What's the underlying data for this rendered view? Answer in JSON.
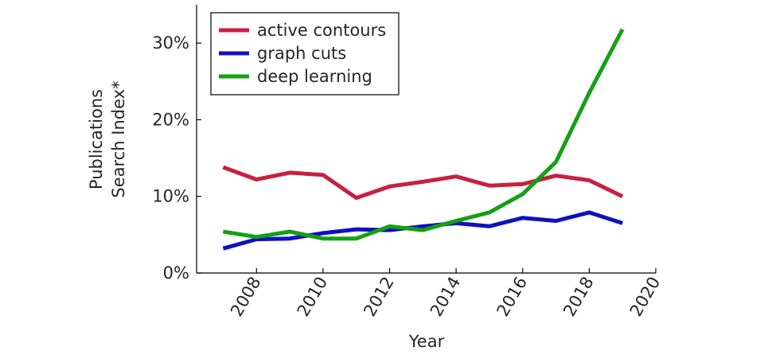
{
  "chart_data": {
    "type": "line",
    "title": "",
    "xlabel": "Year",
    "ylabel": [
      "Publications",
      "Search Index*"
    ],
    "xlim": [
      2006.2,
      2020
    ],
    "ylim": [
      0,
      35
    ],
    "xticks": [
      2008,
      2010,
      2012,
      2014,
      2016,
      2018,
      2020
    ],
    "xtick_labels": [
      "2008",
      "2010",
      "2012",
      "2014",
      "2016",
      "2018",
      "2020"
    ],
    "yticks": [
      0,
      10,
      20,
      30
    ],
    "ytick_labels": [
      "0%",
      "10%",
      "20%",
      "30%"
    ],
    "grid": false,
    "legend_position": "top-left",
    "x": [
      2007,
      2008,
      2009,
      2010,
      2011,
      2012,
      2013,
      2014,
      2015,
      2016,
      2017,
      2018,
      2019
    ],
    "series": [
      {
        "name": "active contours",
        "color": "#c8203f",
        "values": [
          13.8,
          12.2,
          13.1,
          12.8,
          9.8,
          11.3,
          11.9,
          12.6,
          11.4,
          11.6,
          12.7,
          12.1,
          10.0
        ]
      },
      {
        "name": "graph cuts",
        "color": "#1010c0",
        "values": [
          3.2,
          4.4,
          4.5,
          5.2,
          5.7,
          5.6,
          6.1,
          6.5,
          6.1,
          7.2,
          6.8,
          7.9,
          6.5
        ]
      },
      {
        "name": "deep learning",
        "color": "#14a014",
        "values": [
          5.4,
          4.7,
          5.4,
          4.5,
          4.5,
          6.1,
          5.6,
          6.8,
          7.9,
          10.3,
          14.5,
          23.5,
          31.8
        ]
      }
    ]
  }
}
